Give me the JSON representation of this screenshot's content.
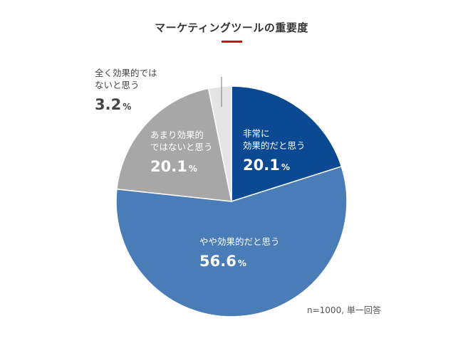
{
  "chart_data": {
    "type": "pie",
    "title": "マーケティングツールの重要度",
    "note": "n=1000, 単一回答",
    "colors": {
      "accent": "#d0121b",
      "very_effective": "#0b4a92",
      "somewhat_effective": "#4a7db8",
      "not_very_effective": "#a7a7a7",
      "not_at_all_effective": "#e4e4e4"
    },
    "slices": [
      {
        "label_lines": [
          "非常に",
          "効果的だと思う"
        ],
        "value": 20.1,
        "display": "20.1",
        "unit": "%",
        "color": "#0b4a92",
        "label_color": "#ffffff"
      },
      {
        "label_lines": [
          "やや効果的だと思う"
        ],
        "value": 56.6,
        "display": "56.6",
        "unit": "%",
        "color": "#4a7db8",
        "label_color": "#ffffff"
      },
      {
        "label_lines": [
          "あまり効果的",
          "ではないと思う"
        ],
        "value": 20.1,
        "display": "20.1",
        "unit": "%",
        "color": "#a7a7a7",
        "label_color": "#ffffff"
      },
      {
        "label_lines": [
          "全く効果的では",
          "ないと思う"
        ],
        "value": 3.2,
        "display": "3.2",
        "unit": "%",
        "color": "#e4e4e4",
        "label_color": "#444444"
      }
    ]
  }
}
